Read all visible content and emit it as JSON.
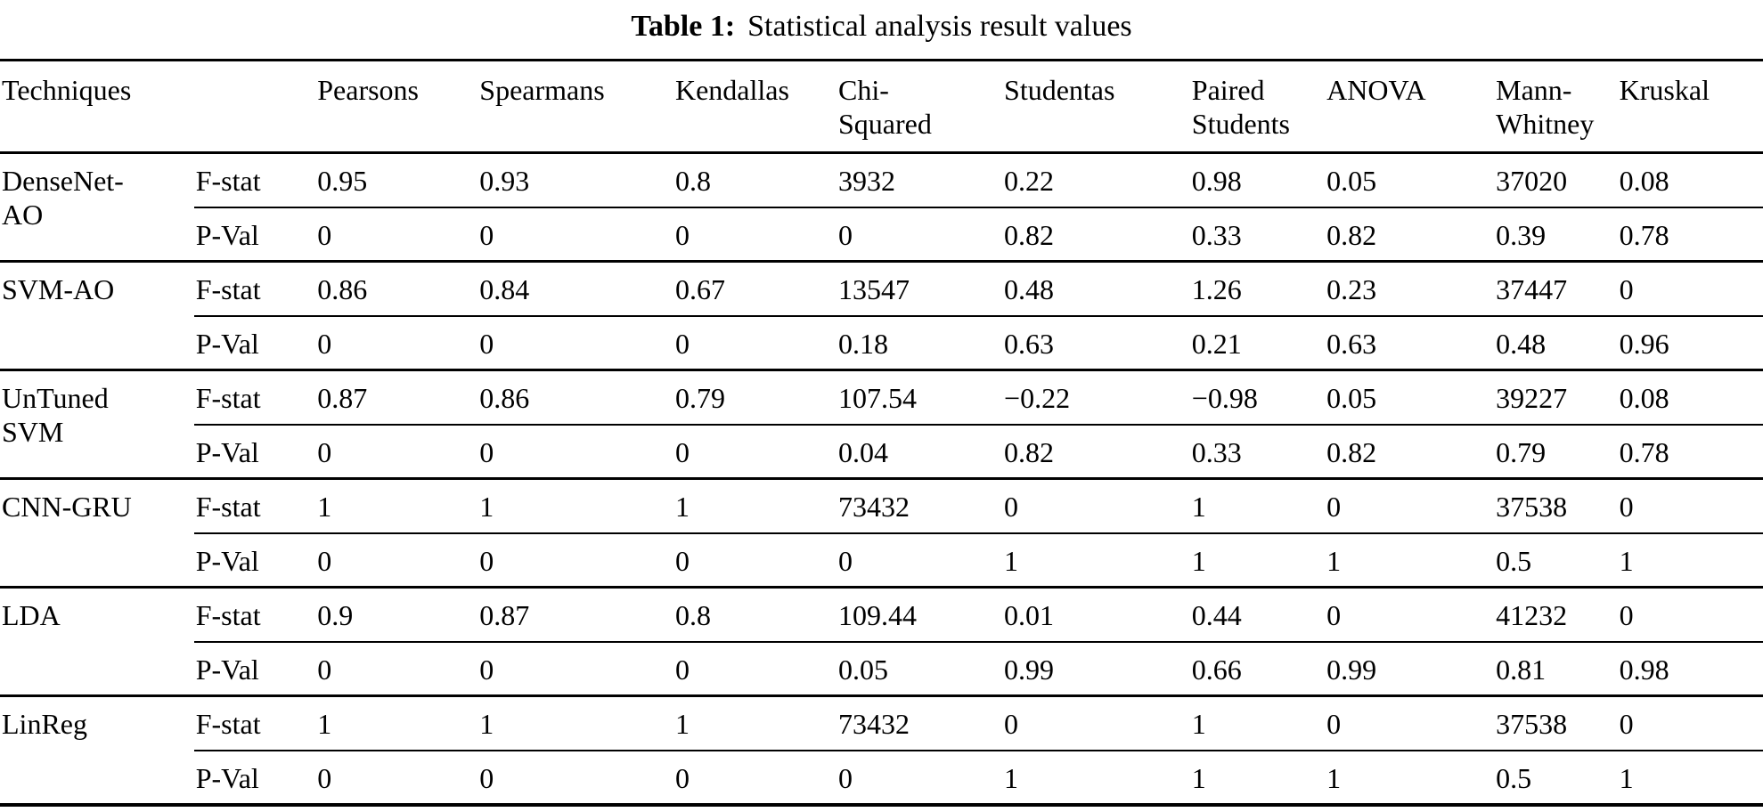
{
  "caption": {
    "label": "Table 1:",
    "text": "Statistical analysis result values"
  },
  "table": {
    "headers": [
      "Techniques",
      "",
      "Pearsons",
      "Spearmans",
      "Kendallas",
      "Chi-\nSquared",
      "Studentas",
      "Paired\nStudents",
      "ANOVA",
      "Mann-\nWhitney",
      "Kruskal"
    ],
    "row_labels": {
      "fstat": "F-stat",
      "pval": "P-Val"
    },
    "groups": [
      {
        "technique": "DenseNet-\nAO",
        "fstat": [
          "0.95",
          "0.93",
          "0.8",
          "3932",
          "0.22",
          "0.98",
          "0.05",
          "37020",
          "0.08"
        ],
        "pval": [
          "0",
          "0",
          "0",
          "0",
          "0.82",
          "0.33",
          "0.82",
          "0.39",
          "0.78"
        ]
      },
      {
        "technique": "SVM-AO",
        "fstat": [
          "0.86",
          "0.84",
          "0.67",
          "13547",
          "0.48",
          "1.26",
          "0.23",
          "37447",
          "0"
        ],
        "pval": [
          "0",
          "0",
          "0",
          "0.18",
          "0.63",
          "0.21",
          "0.63",
          "0.48",
          "0.96"
        ]
      },
      {
        "technique": "UnTuned\nSVM",
        "fstat": [
          "0.87",
          "0.86",
          "0.79",
          "107.54",
          "−0.22",
          "−0.98",
          "0.05",
          "39227",
          "0.08"
        ],
        "pval": [
          "0",
          "0",
          "0",
          "0.04",
          "0.82",
          "0.33",
          "0.82",
          "0.79",
          "0.78"
        ]
      },
      {
        "technique": "CNN-GRU",
        "fstat": [
          "1",
          "1",
          "1",
          "73432",
          "0",
          "1",
          "0",
          "37538",
          "0"
        ],
        "pval": [
          "0",
          "0",
          "0",
          "0",
          "1",
          "1",
          "1",
          "0.5",
          "1"
        ]
      },
      {
        "technique": "LDA",
        "fstat": [
          "0.9",
          "0.87",
          "0.8",
          "109.44",
          "0.01",
          "0.44",
          "0",
          "41232",
          "0"
        ],
        "pval": [
          "0",
          "0",
          "0",
          "0.05",
          "0.99",
          "0.66",
          "0.99",
          "0.81",
          "0.98"
        ]
      },
      {
        "technique": "LinReg",
        "fstat": [
          "1",
          "1",
          "1",
          "73432",
          "0",
          "1",
          "0",
          "37538",
          "0"
        ],
        "pval": [
          "0",
          "0",
          "0",
          "0",
          "1",
          "1",
          "1",
          "0.5",
          "1"
        ]
      }
    ]
  }
}
